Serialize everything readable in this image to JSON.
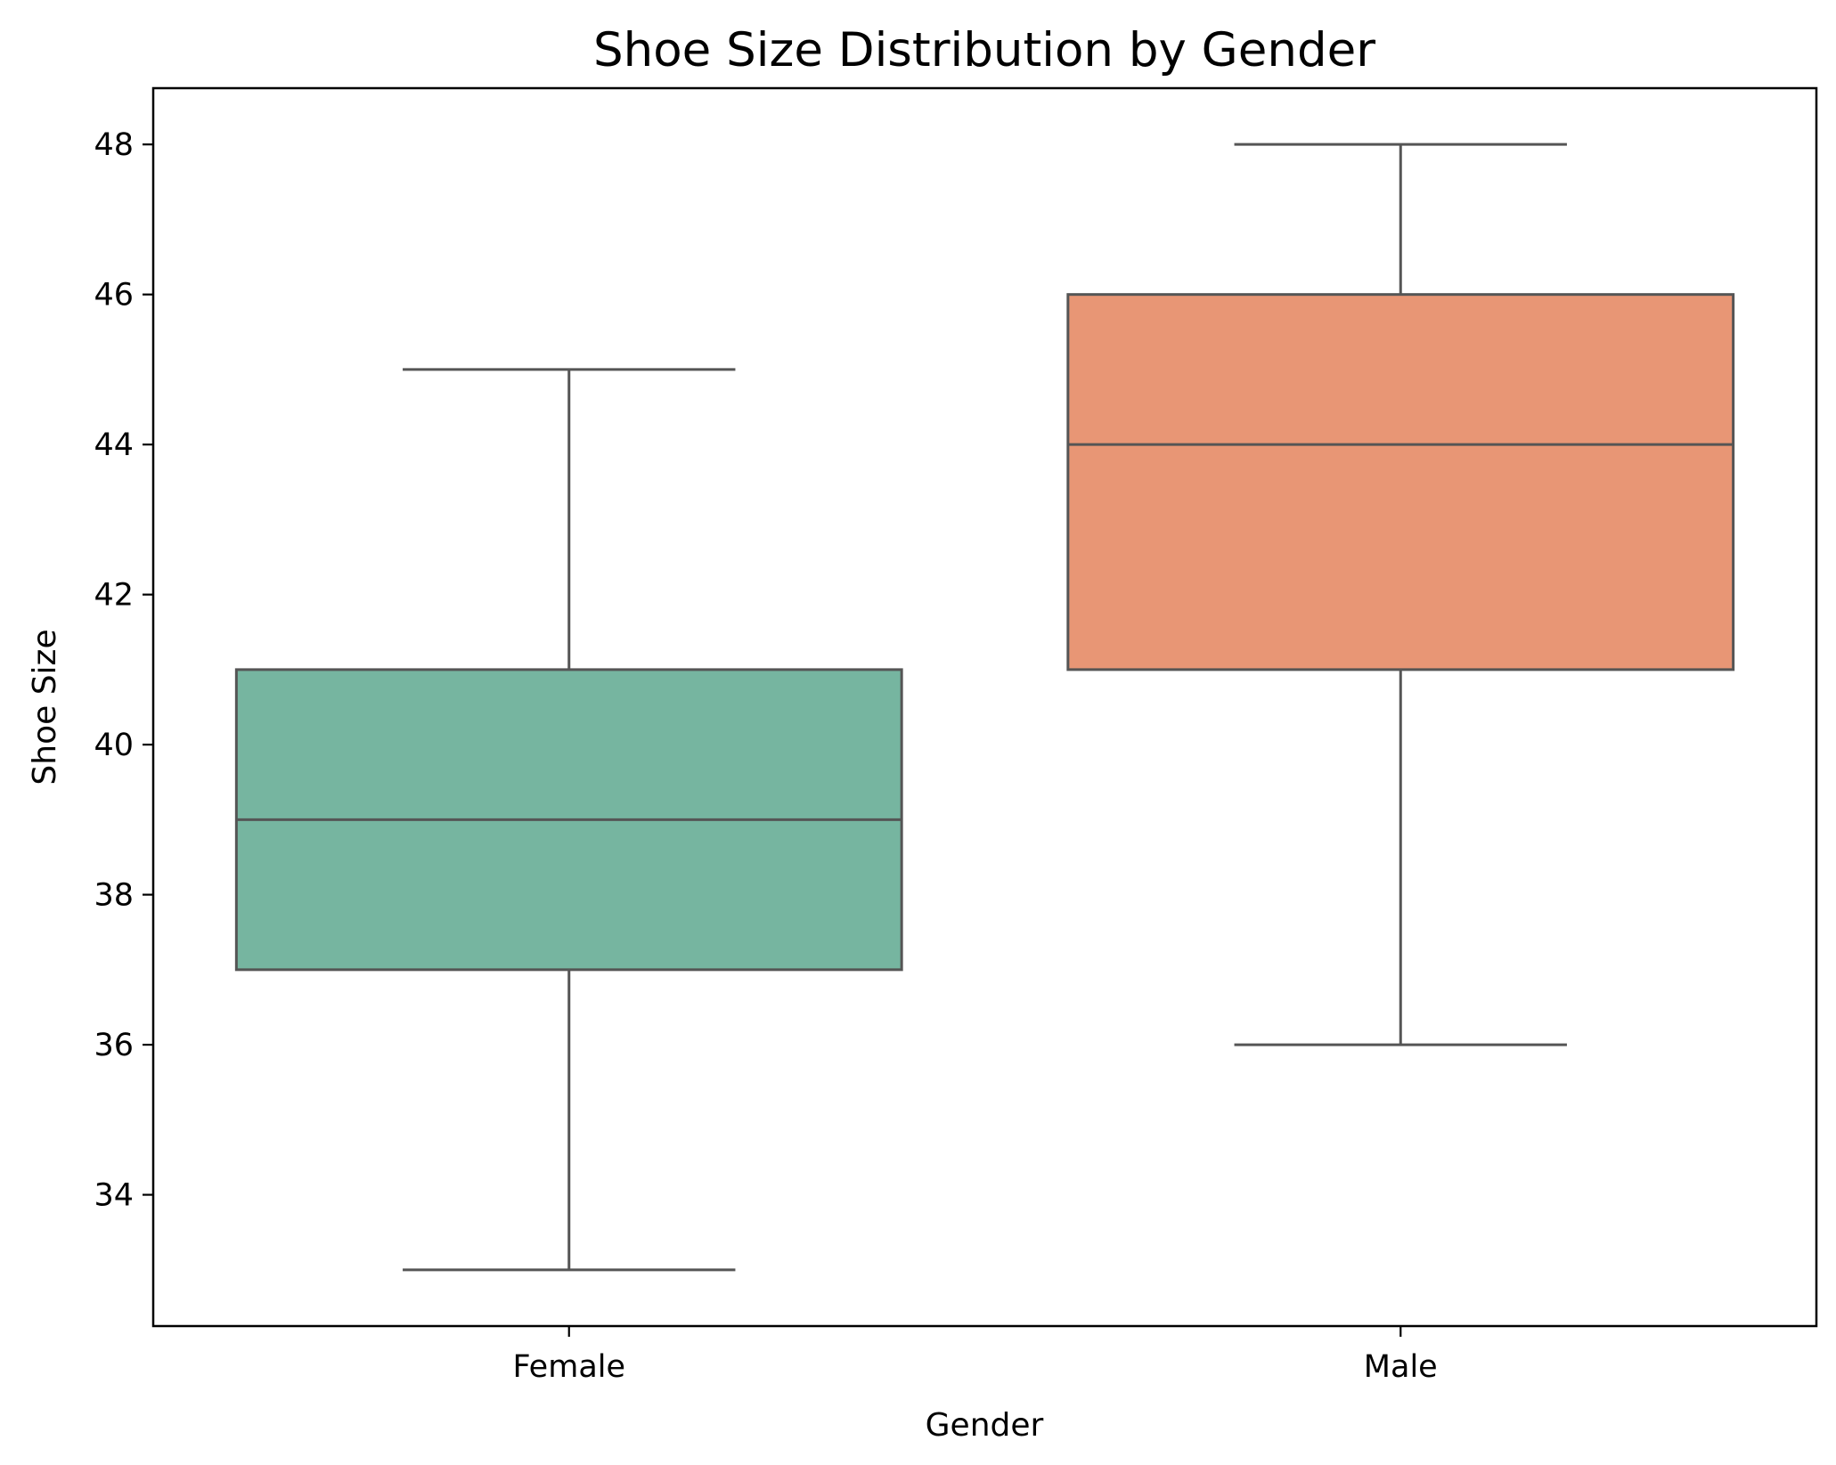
{
  "chart_data": {
    "type": "box",
    "title": "Shoe Size Distribution by Gender",
    "xlabel": "Gender",
    "ylabel": "Shoe Size",
    "ylim": [
      32.25,
      48.75
    ],
    "yticks": [
      34,
      36,
      38,
      40,
      42,
      44,
      46,
      48
    ],
    "grid": false,
    "categories": [
      "Female",
      "Male"
    ],
    "boxes": [
      {
        "category": "Female",
        "whisker_low": 33,
        "q1": 37,
        "median": 39,
        "q3": 41,
        "whisker_high": 45,
        "color": "#76b5a0"
      },
      {
        "category": "Male",
        "whisker_low": 36,
        "q1": 41,
        "median": 44,
        "q3": 46,
        "whisker_high": 48,
        "color": "#e89675"
      }
    ],
    "line_color": "#555555"
  }
}
